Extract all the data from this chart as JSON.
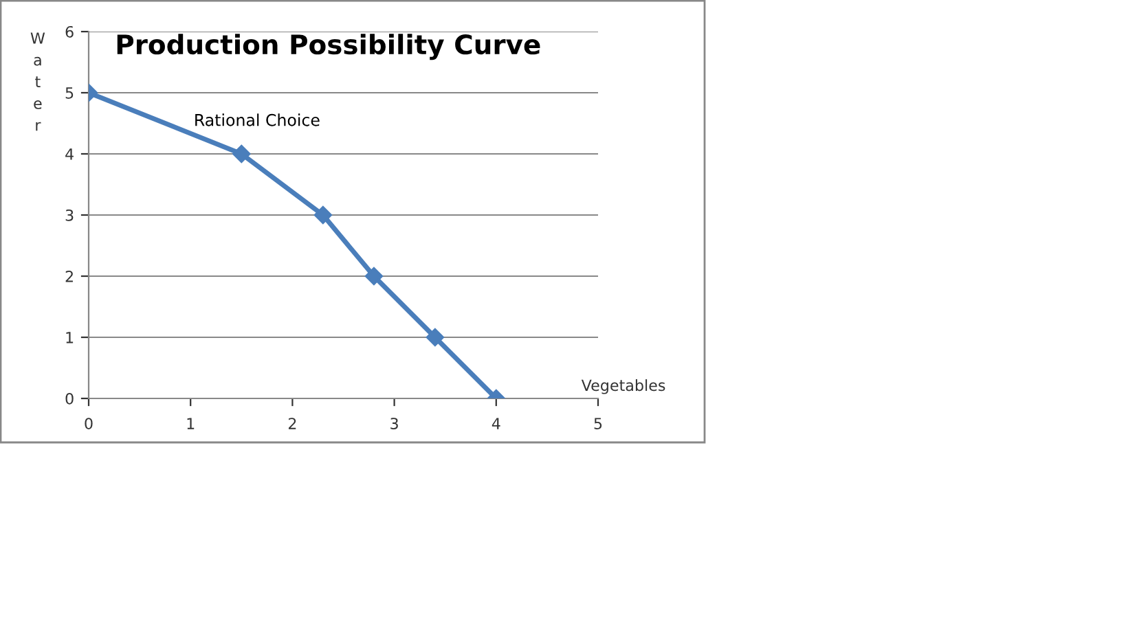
{
  "chart_data": {
    "type": "line",
    "title": "Production Possibility Curve",
    "xlabel": "Vegetables",
    "ylabel": "Water",
    "x": [
      0,
      1.5,
      2.3,
      2.8,
      3.4,
      4
    ],
    "series": [
      {
        "color": "#4a7ebb",
        "values": [
          5,
          4,
          3,
          2,
          1,
          0
        ]
      }
    ],
    "xlim": [
      0,
      5
    ],
    "ylim": [
      0,
      6
    ],
    "xticks": [
      0,
      1,
      2,
      3,
      4,
      5
    ],
    "yticks": [
      0,
      1,
      2,
      3,
      4,
      5,
      6
    ],
    "grid": "y",
    "marker": "diamond",
    "line_style": "solid",
    "legend": false,
    "annotations": [
      {
        "text": "Rational Choice",
        "x": 1.5,
        "y": 4
      }
    ]
  }
}
